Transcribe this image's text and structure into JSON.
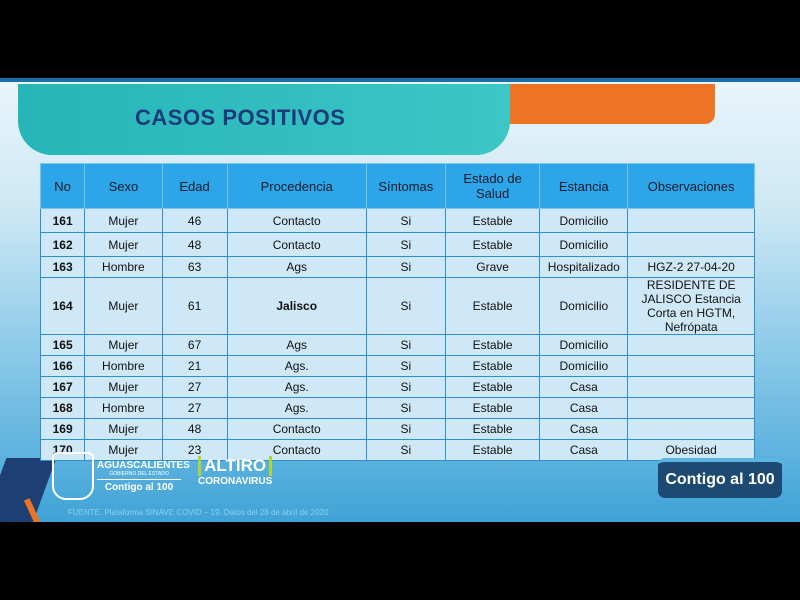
{
  "title": "CASOS POSITIVOS",
  "columns": [
    "No",
    "Sexo",
    "Edad",
    "Procedencia",
    "Síntomas",
    "Estado de Salud",
    "Estancia",
    "Observaciones"
  ],
  "rows": [
    [
      "161",
      "Mujer",
      "46",
      "Contacto",
      "Si",
      "Estable",
      "Domicilio",
      ""
    ],
    [
      "162",
      "Mujer",
      "48",
      "Contacto",
      "Si",
      "Estable",
      "Domicilio",
      ""
    ],
    [
      "163",
      "Hombre",
      "63",
      "Ags",
      "Si",
      "Grave",
      "Hospitalizado",
      "HGZ-2 27-04-20"
    ],
    [
      "164",
      "Mujer",
      "61",
      "Jalisco",
      "Si",
      "Estable",
      "Domicilio",
      "RESIDENTE DE JALISCO Estancia Corta en HGTM, Nefrópata"
    ],
    [
      "165",
      "Mujer",
      "67",
      "Ags",
      "Si",
      "Estable",
      "Domicilio",
      ""
    ],
    [
      "166",
      "Hombre",
      "21",
      "Ags.",
      "Si",
      "Estable",
      "Domicilio",
      ""
    ],
    [
      "167",
      "Mujer",
      "27",
      "Ags.",
      "Si",
      "Estable",
      "Casa",
      ""
    ],
    [
      "168",
      "Hombre",
      "27",
      "Ags.",
      "Si",
      "Estable",
      "Casa",
      ""
    ],
    [
      "169",
      "Mujer",
      "48",
      "Contacto",
      "Si",
      "Estable",
      "Casa",
      ""
    ],
    [
      "170",
      "Mujer",
      "23",
      "Contacto",
      "Si",
      "Estable",
      "Casa",
      "Obesidad"
    ]
  ],
  "logos": {
    "ags_name": "AGUASCALIENTES",
    "ags_gov": "GOBIERNO DEL ESTADO",
    "ags_slogan": "Contigo al 100",
    "altiro": "ALTIRO",
    "altiro_sub": "CORONAVIRUS",
    "badge": "Contigo al 100"
  },
  "footer": "FUENTE. Plataforma SINAVE COVID – 19. Datos del 28 de abril de 2020"
}
